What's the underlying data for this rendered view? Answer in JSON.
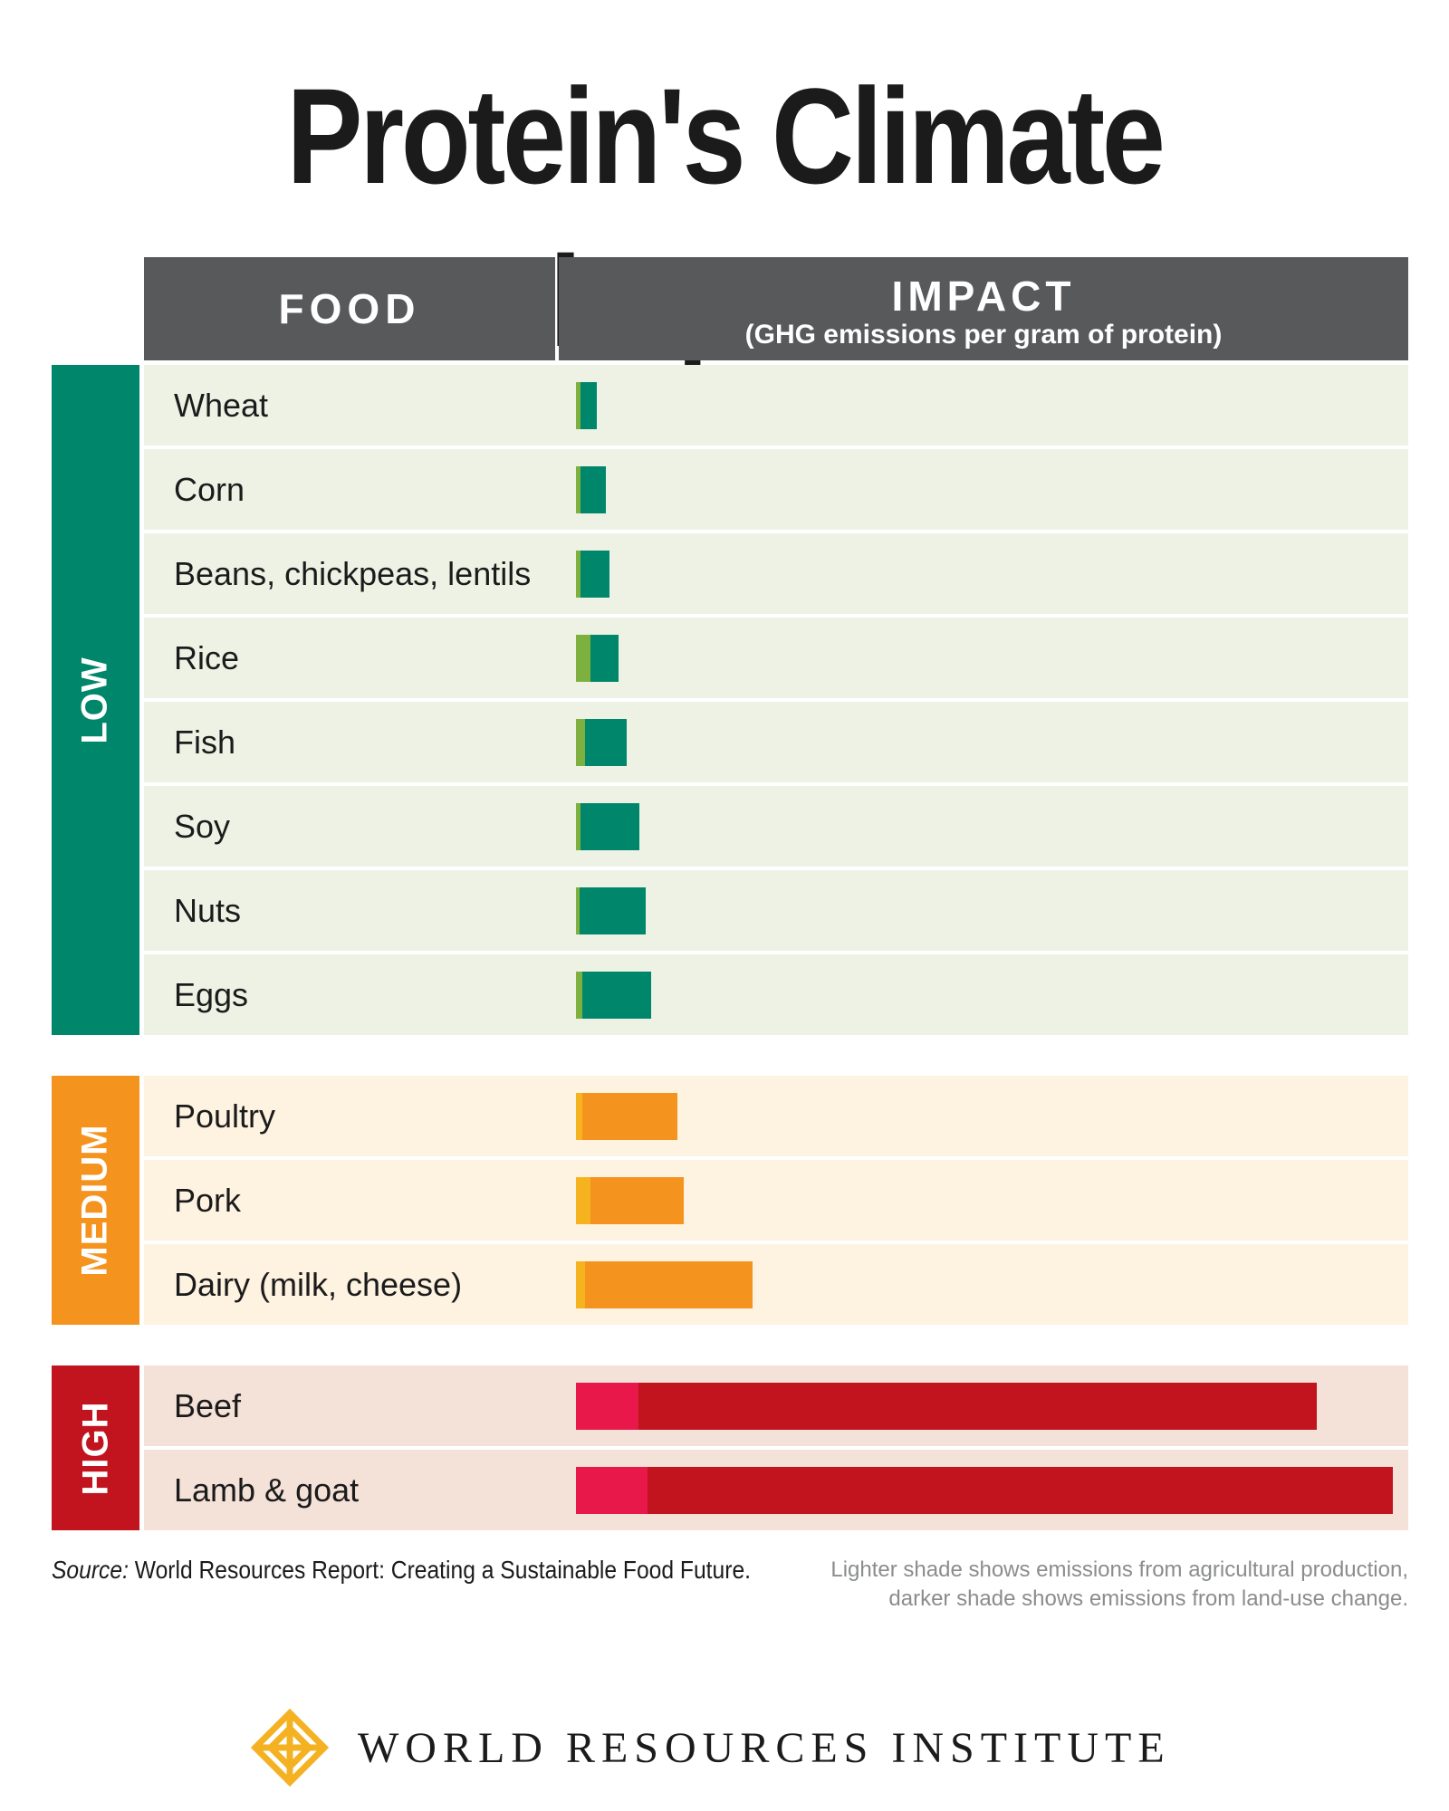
{
  "title": "Protein's Climate Impact",
  "header": {
    "food": "FOOD",
    "impact": "IMPACT",
    "impact_sub": "(GHG emissions per gram of protein)"
  },
  "colors": {
    "low": {
      "band": "#00866b",
      "row": "#eef2e5",
      "light": "#7db03e",
      "dark": "#00866b"
    },
    "medium": {
      "band": "#f5931f",
      "row": "#fef2e1",
      "light": "#f5b41f",
      "dark": "#f5931f"
    },
    "high": {
      "band": "#c1141e",
      "row": "#f4e1d7",
      "light": "#e9184a",
      "dark": "#c1141e"
    }
  },
  "chart_data": {
    "type": "bar",
    "orientation": "horizontal",
    "stacked": true,
    "title": "Protein's Climate Impact",
    "xlabel": "IMPACT (GHG emissions per gram of protein)",
    "ylabel": "FOOD",
    "units": "relative (share of largest total, Lamb & goat = 100)",
    "xlim": [
      0,
      100
    ],
    "series_names": [
      "Agricultural production",
      "Land-use change"
    ],
    "groups": [
      {
        "label": "LOW",
        "key": "low",
        "items": [
          {
            "name": "Wheat",
            "production": 0.5,
            "land_use": 2.0
          },
          {
            "name": "Corn",
            "production": 0.5,
            "land_use": 3.2
          },
          {
            "name": "Beans, chickpeas, lentils",
            "production": 0.5,
            "land_use": 3.6
          },
          {
            "name": "Rice",
            "production": 1.8,
            "land_use": 3.4
          },
          {
            "name": "Fish",
            "production": 1.1,
            "land_use": 5.1
          },
          {
            "name": "Soy",
            "production": 0.5,
            "land_use": 7.3
          },
          {
            "name": "Nuts",
            "production": 0.4,
            "land_use": 8.1
          },
          {
            "name": "Eggs",
            "production": 0.8,
            "land_use": 8.4
          }
        ]
      },
      {
        "label": "MEDIUM",
        "key": "medium",
        "items": [
          {
            "name": "Poultry",
            "production": 0.8,
            "land_use": 11.6
          },
          {
            "name": "Pork",
            "production": 1.8,
            "land_use": 11.4
          },
          {
            "name": "Dairy (milk, cheese)",
            "production": 1.1,
            "land_use": 20.5
          }
        ]
      },
      {
        "label": "HIGH",
        "key": "high",
        "items": [
          {
            "name": "Beef",
            "production": 7.7,
            "land_use": 83.0
          },
          {
            "name": "Lamb & goat",
            "production": 8.8,
            "land_use": 91.2
          }
        ]
      }
    ]
  },
  "source": {
    "label": "Source:",
    "text": " World Resources Report: Creating a Sustainable Food Future."
  },
  "note": {
    "line1": "Lighter shade shows emissions from agricultural production,",
    "line2": "darker shade shows emissions from land-use change."
  },
  "logo": {
    "text": "WORLD RESOURCES INSTITUTE",
    "icon": "wri-knot-icon"
  }
}
